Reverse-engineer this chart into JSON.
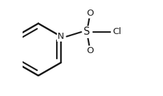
{
  "background_color": "#ffffff",
  "line_color": "#1a1a1a",
  "line_width": 1.6,
  "font_size_N": 9.5,
  "font_size_S": 10.5,
  "font_size_O": 9.5,
  "font_size_Cl": 9.5,
  "figsize": [
    2.38,
    1.41
  ],
  "dpi": 100,
  "xlim": [
    -1.0,
    2.8
  ],
  "ylim": [
    -1.5,
    1.6
  ]
}
